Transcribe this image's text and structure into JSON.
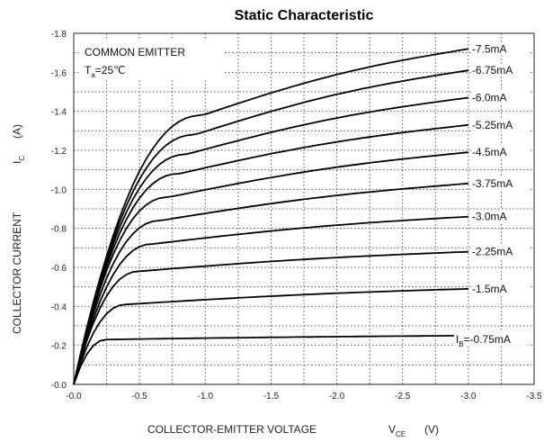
{
  "chart_data": {
    "type": "line",
    "title": "Static Characteristic",
    "xlabel": "COLLECTOR-EMITTER VOLTAGE",
    "xlabel_symbol": "V",
    "xlabel_sub": "CE",
    "xlabel_unit": "(V)",
    "ylabel": "COLLECTOR CURRENT",
    "ylabel_symbol": "I",
    "ylabel_sub": "C",
    "ylabel_unit": "(A)",
    "xlim": [
      0,
      -3.5
    ],
    "ylim": [
      0,
      -1.8
    ],
    "x_ticks": [
      0,
      -0.5,
      -1.0,
      -1.5,
      -2.0,
      -2.5,
      -3.0,
      -3.5
    ],
    "x_tick_labels": [
      "-0.0",
      "-0.5",
      "-1.0",
      "-1.5",
      "-2.0",
      "-2.5",
      "-3.0",
      "-3.5"
    ],
    "y_ticks": [
      0,
      -0.2,
      -0.4,
      -0.6,
      -0.8,
      -1.0,
      -1.2,
      -1.4,
      -1.6,
      -1.8
    ],
    "y_tick_labels": [
      "-0.0",
      "-0.2",
      "-0.4",
      "-0.6",
      "-0.8",
      "-1.0",
      "-1.2",
      "-1.4",
      "-1.6",
      "-1.8"
    ],
    "grid": "dotted",
    "annotation_line1": "COMMON EMITTER",
    "annotation_T": "T",
    "annotation_T_sub": "a",
    "annotation_T_value": "=25℃",
    "first_label_prefix": "I",
    "first_label_sub": "B",
    "series": [
      {
        "label": "=-0.75mA",
        "sat_x": -0.25,
        "sat_y": -0.23,
        "end_y": -0.25
      },
      {
        "label": "-1.5mA",
        "sat_x": -0.4,
        "sat_y": -0.41,
        "end_y": -0.49
      },
      {
        "label": "-2.25mA",
        "sat_x": -0.5,
        "sat_y": -0.58,
        "end_y": -0.68
      },
      {
        "label": "-3.0mA",
        "sat_x": -0.6,
        "sat_y": -0.72,
        "end_y": -0.86
      },
      {
        "label": "-3.75mA",
        "sat_x": -0.66,
        "sat_y": -0.84,
        "end_y": -1.03
      },
      {
        "label": "-4.5mA",
        "sat_x": -0.72,
        "sat_y": -0.96,
        "end_y": -1.19
      },
      {
        "label": "-5.25mA",
        "sat_x": -0.8,
        "sat_y": -1.08,
        "end_y": -1.33
      },
      {
        "label": "-6.0mA",
        "sat_x": -0.86,
        "sat_y": -1.18,
        "end_y": -1.47
      },
      {
        "label": "-6.75mA",
        "sat_x": -0.92,
        "sat_y": -1.28,
        "end_y": -1.61
      },
      {
        "label": "-7.5mA",
        "sat_x": -0.98,
        "sat_y": -1.38,
        "end_y": -1.72
      }
    ]
  }
}
